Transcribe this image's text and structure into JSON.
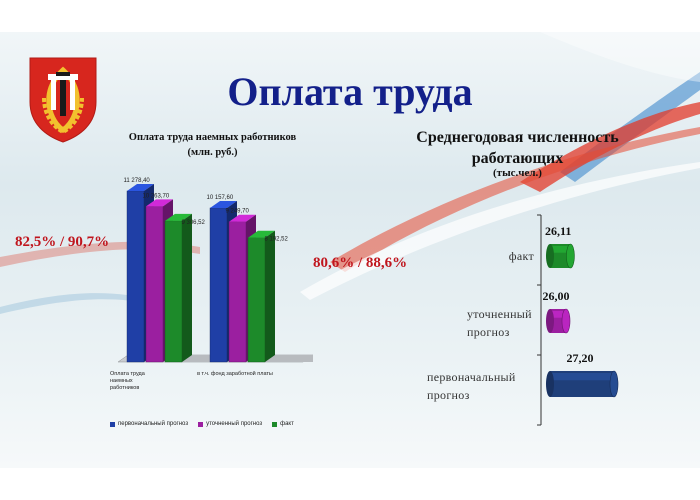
{
  "slide": {
    "title": "Оплата труда",
    "left_percent": "82,5% / 90,7%",
    "right_percent": "80,6% / 88,6%",
    "colors": {
      "accent_red": "#c0151d",
      "title_blue": "#13208a"
    }
  },
  "emblem": {
    "icon": "city-coat-of-arms-icon"
  },
  "chart_data": [
    {
      "type": "bar",
      "title": "Оплата труда наемных работников (млн. руб.)",
      "title_line1": "Оплата труда наемных работников",
      "title_line2": "(млн. руб.)",
      "categories": [
        "Оплата труда наемных работников",
        "в т.ч. фонд заработной платы"
      ],
      "category_labels": [
        "Оплата труда наемных\nработников",
        "в т.ч. фонд заработной платы"
      ],
      "series": [
        {
          "name": "первоначальный прогноз",
          "color": "#1f3fa6",
          "values": [
            11278.4,
            10157.6
          ],
          "labels": [
            "11 278,40",
            "10 157,60"
          ]
        },
        {
          "name": "уточненный прогноз",
          "color": "#9b1fa0",
          "values": [
            10263.7,
            9249.7
          ],
          "labels": [
            "10 263,70",
            "9 249,70"
          ]
        },
        {
          "name": "факт",
          "color": "#1d8a2a",
          "values": [
            9306.52,
            8192.52
          ],
          "labels": [
            "9 306,52",
            "8 192,52"
          ]
        }
      ],
      "ylim": [
        0,
        12000
      ],
      "grid": false,
      "legend": "bottom"
    },
    {
      "type": "bar",
      "orientation": "horizontal",
      "title": "Среднегодовая численность работающих (тыс.чел.)",
      "title_line1": "Среднегодовая численность",
      "title_line2": "работающих",
      "unit": "(тыс.чел.)",
      "categories": [
        "факт",
        "уточненный прогноз",
        "первоначальный прогноз"
      ],
      "category_labels": [
        "факт",
        "уточненный\nпрогноз",
        "первоначальный\nпрогноз"
      ],
      "values": [
        26.11,
        26.0,
        27.2
      ],
      "value_labels": [
        "26,11",
        "26,00",
        "27,20"
      ],
      "colors": [
        "#1d8a2a",
        "#9b1fa0",
        "#1f3f7a"
      ],
      "xlim": [
        25.6,
        27.4
      ],
      "grid": false,
      "legend": "none"
    }
  ]
}
